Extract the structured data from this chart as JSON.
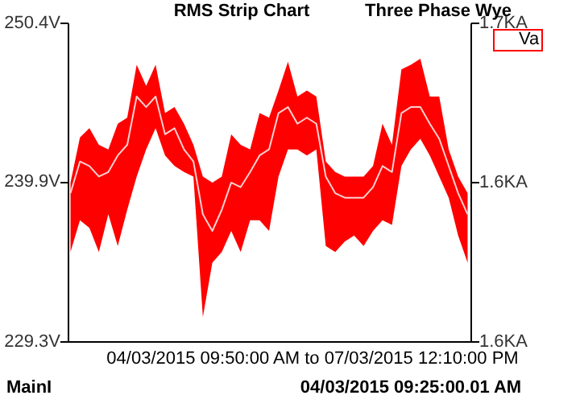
{
  "chart_data": {
    "type": "line",
    "title": "RMS Strip Chart",
    "subtitle": "Three Phase Wye",
    "annotations": [
      "04/03/2015   09:50:00 AM   to   07/03/2015   12:10:00 PM",
      "MainI",
      "04/03/2015   09:25:00.01 AM"
    ],
    "categories": [
      null,
      null,
      null,
      null,
      null,
      null,
      null,
      null,
      null,
      null,
      null,
      null,
      null,
      null,
      null,
      null,
      null,
      null,
      null,
      null,
      null,
      null,
      null,
      null,
      null,
      null,
      null,
      null,
      null,
      null,
      null,
      null,
      null,
      null,
      null,
      null,
      null,
      null,
      null,
      null,
      null,
      null,
      null
    ],
    "series": [
      {
        "name": "Va",
        "color": "#ffd0d0",
        "values": [
          239.1,
          241.2,
          240.9,
          240.2,
          240.5,
          241.6,
          242.3,
          245.5,
          244.8,
          245.5,
          243.0,
          243.4,
          242.0,
          241.2,
          237.7,
          236.6,
          238.0,
          239.8,
          239.5,
          240.5,
          241.6,
          242.0,
          244.4,
          244.8,
          243.7,
          244.1,
          243.7,
          240.2,
          239.1,
          238.8,
          238.8,
          238.8,
          239.5,
          240.9,
          240.5,
          244.4,
          244.8,
          244.8,
          243.7,
          242.7,
          240.9,
          239.1,
          237.7
        ],
        "lower": [
          235.2,
          237.3,
          236.8,
          235.2,
          237.7,
          235.6,
          238.0,
          240.2,
          242.0,
          243.4,
          241.6,
          240.9,
          240.5,
          240.2,
          230.9,
          234.5,
          235.2,
          236.6,
          235.2,
          237.3,
          237.3,
          236.6,
          240.2,
          242.0,
          242.0,
          241.6,
          242.0,
          235.6,
          235.2,
          235.9,
          236.3,
          235.6,
          236.6,
          237.3,
          237.0,
          240.9,
          242.0,
          242.7,
          241.6,
          240.2,
          238.8,
          236.3,
          234.5
        ],
        "upper": [
          239.8,
          242.8,
          243.4,
          242.3,
          242.0,
          243.7,
          244.1,
          247.6,
          246.2,
          247.6,
          244.4,
          244.8,
          243.7,
          242.3,
          240.2,
          239.8,
          240.2,
          243.0,
          242.3,
          242.0,
          244.4,
          244.1,
          245.9,
          247.8,
          245.5,
          245.9,
          245.5,
          241.2,
          240.5,
          240.2,
          240.2,
          240.2,
          240.9,
          243.7,
          242.3,
          247.3,
          247.6,
          248.0,
          245.5,
          245.5,
          242.0,
          240.2,
          239.1
        ]
      }
    ],
    "ylim": [
      229.3,
      250.4
    ],
    "yticks": [
      {
        "value": 250.4,
        "label": "250.4V"
      },
      {
        "value": 239.9,
        "label": "239.9V"
      },
      {
        "value": 229.3,
        "label": "229.3V"
      }
    ],
    "y2lim": [
      1.55,
      1.65
    ],
    "y2ticks": [
      {
        "value": 1.65,
        "label": "1.7KA"
      },
      {
        "value": 1.6,
        "label": "1.6KA"
      },
      {
        "value": 1.55,
        "label": "1.6KA"
      }
    ],
    "tick_labels": "y",
    "grid": false,
    "legend": "top right",
    "marker": "none",
    "line_style": "solid"
  }
}
